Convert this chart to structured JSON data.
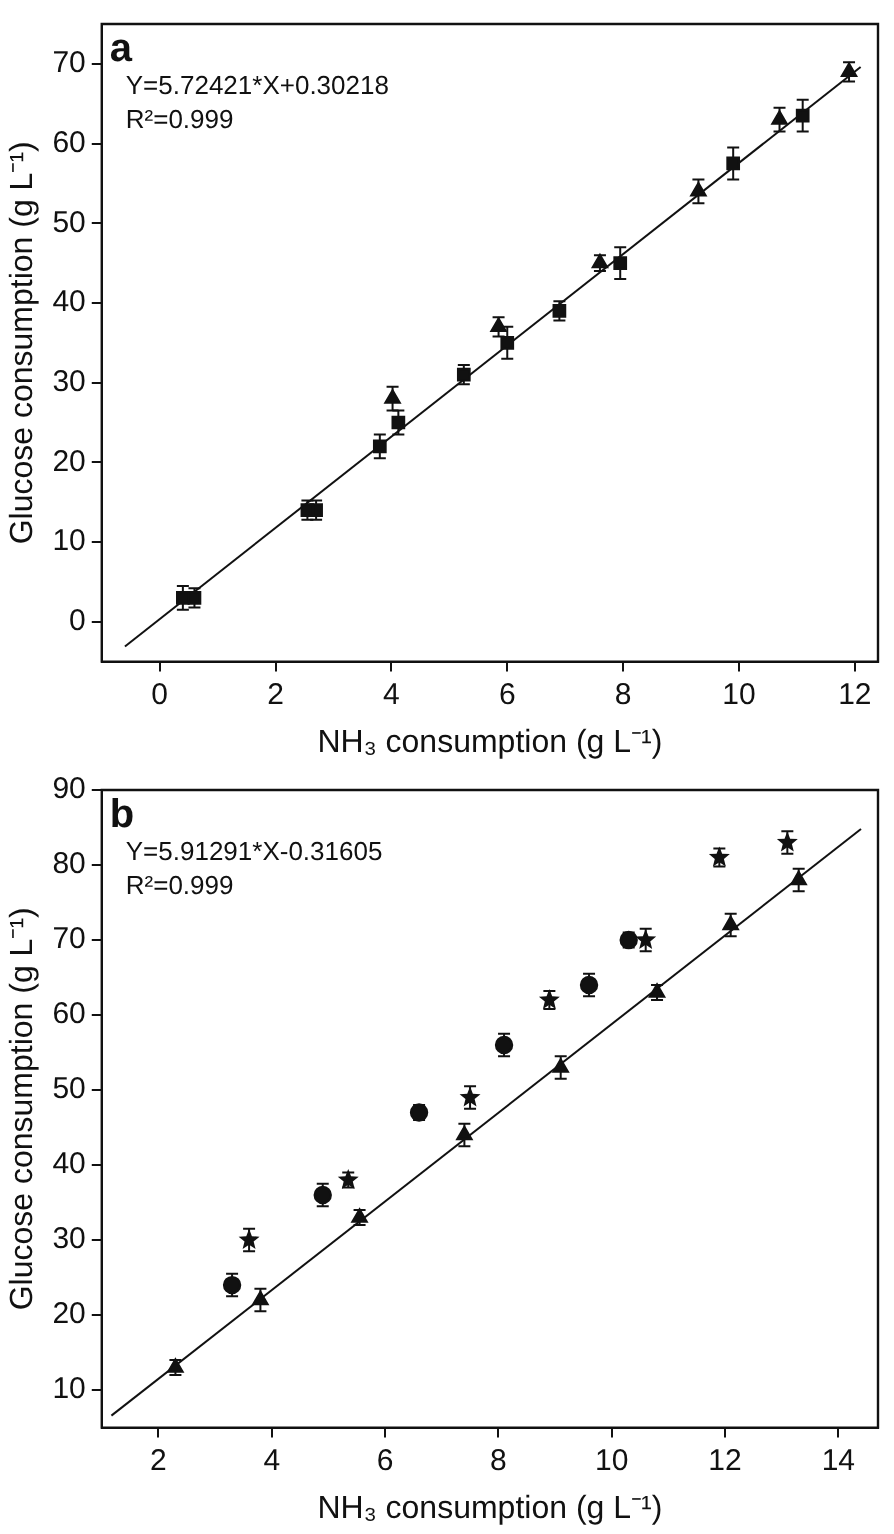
{
  "chart_data": [
    {
      "type": "scatter",
      "title": "a",
      "xlabel": "NH₃ consumption (g L⁻¹)",
      "ylabel": "Glucose consumption (g L⁻¹)",
      "annotations": [
        "Y=5.72421*X+0.30218",
        "R²=0.999"
      ],
      "xlim": [
        -1,
        12.4
      ],
      "xticks": [
        0,
        2,
        4,
        6,
        8,
        10,
        12
      ],
      "ylim": [
        -5,
        75
      ],
      "yticks": [
        0,
        10,
        20,
        30,
        40,
        50,
        60,
        70
      ],
      "grid": false,
      "legend": false,
      "series": [
        {
          "type": "scatter",
          "marker": "square",
          "color": "#111111",
          "x": [
            0.4,
            2.55,
            4.12,
            6.0,
            7.95,
            9.9,
            11.1
          ],
          "values": [
            3,
            14,
            25,
            35,
            45,
            57.5,
            63.5
          ],
          "errors": [
            1.5,
            1.2,
            1.5,
            2,
            2,
            2,
            2
          ]
        },
        {
          "type": "scatter",
          "marker": "square",
          "color": "#111111",
          "x": [
            0.6,
            2.7,
            3.8,
            5.25,
            6.9
          ],
          "values": [
            3,
            14,
            22,
            31,
            39
          ],
          "errors": [
            1.2,
            1.2,
            1.5,
            1.2,
            1.2
          ]
        },
        {
          "type": "scatter",
          "marker": "triangle",
          "color": "#111111",
          "x": [
            4.02,
            5.85,
            7.6,
            9.3,
            10.7,
            11.9
          ],
          "values": [
            28,
            37,
            45,
            54,
            63,
            69
          ],
          "errors": [
            1.5,
            1.2,
            1,
            1.5,
            1.5,
            1.2
          ]
        },
        {
          "type": "line",
          "color": "#111111",
          "x": [
            -0.6,
            12.1
          ],
          "values": [
            -3.1,
            69.6
          ]
        }
      ]
    },
    {
      "type": "scatter",
      "title": "b",
      "xlabel": "NH₃ consumption (g L⁻¹)",
      "ylabel": "Glucose consumption (g L⁻¹)",
      "annotations": [
        "Y=5.91291*X-0.31605",
        "R²=0.999"
      ],
      "xlim": [
        1,
        14.7
      ],
      "xticks": [
        2,
        4,
        6,
        8,
        10,
        12,
        14
      ],
      "ylim": [
        5,
        90
      ],
      "yticks": [
        10,
        20,
        30,
        40,
        50,
        60,
        70,
        80,
        90
      ],
      "grid": false,
      "legend": false,
      "series": [
        {
          "type": "scatter",
          "marker": "triangle",
          "color": "#111111",
          "x": [
            2.3,
            3.8,
            5.55,
            7.4,
            9.1,
            10.8,
            12.1,
            13.3
          ],
          "values": [
            13,
            22,
            33,
            44,
            53,
            63,
            72,
            78
          ],
          "errors": [
            1,
            1.5,
            1,
            1.5,
            1.5,
            1,
            1.5,
            1.5
          ]
        },
        {
          "type": "scatter",
          "marker": "star",
          "color": "#111111",
          "x": [
            3.6,
            5.35,
            7.5,
            8.9,
            10.6,
            11.9,
            13.1
          ],
          "values": [
            30,
            38,
            49,
            62,
            70,
            81,
            83
          ],
          "errors": [
            1.5,
            1,
            1.5,
            1.2,
            1.5,
            1.2,
            1.5
          ]
        },
        {
          "type": "scatter",
          "marker": "circle",
          "color": "#111111",
          "x": [
            3.3,
            4.9,
            6.6,
            8.1,
            9.6,
            10.3
          ],
          "values": [
            24,
            36,
            47,
            56,
            64,
            70
          ],
          "errors": [
            1.5,
            1.5,
            1,
            1.5,
            1.5,
            1
          ]
        },
        {
          "type": "line",
          "color": "#111111",
          "x": [
            1.17,
            14.4
          ],
          "values": [
            6.6,
            84.8
          ]
        }
      ]
    }
  ]
}
